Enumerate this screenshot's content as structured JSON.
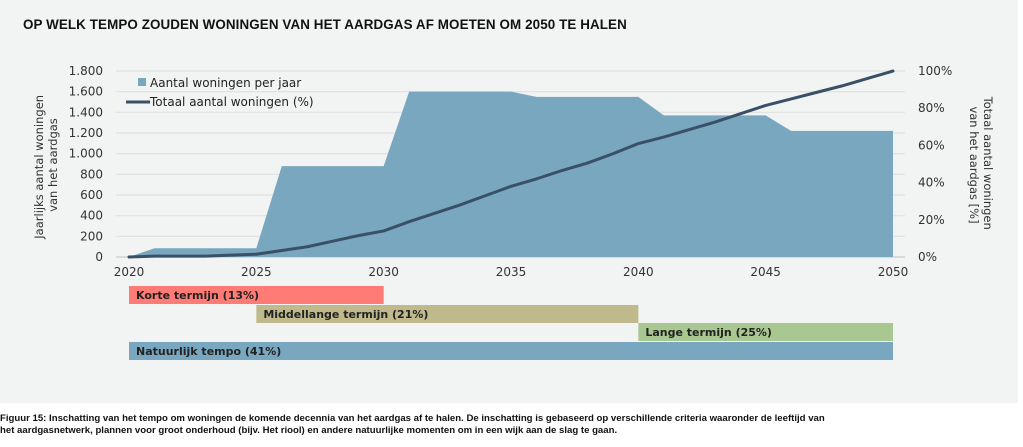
{
  "title": "OP WELK TEMPO ZOUDEN WONINGEN VAN HET AARDGAS AF MOETEN OM 2050 TE HALEN",
  "caption": {
    "line1": "Figuur 15: Inschatting van het tempo om woningen de komende decennia van het aardgas af te halen. De inschatting is gebaseerd op verschillende criteria waaronder de leeftijd van",
    "line2": "het aardgasnetwerk, plannen voor groot onderhoud (bijv. Het riool) en andere natuurlijke momenten om in een wijk aan de slag te gaan."
  },
  "chart_data": {
    "type": "area",
    "title": "OP WELK TEMPO ZOUDEN WONINGEN VAN HET AARDGAS AF MOETEN OM 2050 TE HALEN",
    "xlabel": "",
    "ylabel": "Jaarlijks aantal woningen van het aardgas",
    "ylabel_lines": [
      "Jaarlijks aantal woningen",
      "van het aardgas"
    ],
    "y2label": "Totaal aantal woningen van het aardgas [%]",
    "y2label_lines": [
      "Totaal aantal woningen",
      "van het aardgas [%]"
    ],
    "xlim": [
      2020,
      2050
    ],
    "ylim": [
      0,
      1800
    ],
    "y2lim": [
      0,
      100
    ],
    "grid": true,
    "legend_position": "top-left",
    "x_ticks": [
      2020,
      2025,
      2030,
      2035,
      2040,
      2045,
      2050
    ],
    "x_tick_labels": [
      "2020",
      "2025",
      "2030",
      "2035",
      "2040",
      "2045",
      "2050"
    ],
    "y_ticks": [
      0,
      200,
      400,
      600,
      800,
      1000,
      1200,
      1400,
      1600,
      1800
    ],
    "y_tick_labels": [
      "0",
      "200",
      "400",
      "600",
      "800",
      "1.000",
      "1.200",
      "1.400",
      "1.600",
      "1.800"
    ],
    "y2_ticks": [
      0,
      20,
      40,
      60,
      80,
      100
    ],
    "y2_tick_labels": [
      "0%",
      "20%",
      "40%",
      "60%",
      "80%",
      "100%"
    ],
    "x": [
      2020,
      2021,
      2022,
      2023,
      2024,
      2025,
      2026,
      2027,
      2028,
      2029,
      2030,
      2031,
      2032,
      2033,
      2034,
      2035,
      2036,
      2037,
      2038,
      2039,
      2040,
      2041,
      2042,
      2043,
      2044,
      2045,
      2046,
      2047,
      2048,
      2049,
      2050
    ],
    "series": [
      {
        "name": "Aantal woningen per jaar",
        "type": "area",
        "axis": "left",
        "color": "#79a7c0",
        "values": [
          0,
          85,
          85,
          85,
          85,
          85,
          880,
          880,
          880,
          880,
          880,
          1600,
          1600,
          1600,
          1600,
          1600,
          1550,
          1550,
          1550,
          1550,
          1550,
          1370,
          1370,
          1370,
          1370,
          1370,
          1220,
          1220,
          1220,
          1220,
          1220
        ]
      },
      {
        "name": "Totaal aantal woningen (%)",
        "type": "line",
        "axis": "right",
        "color": "#3a5067",
        "values": [
          0,
          0.5,
          0.5,
          0.5,
          1,
          1.5,
          3.5,
          5.5,
          8.5,
          11.5,
          14,
          19,
          23.5,
          28,
          33,
          38,
          42,
          46.5,
          50.5,
          55.5,
          61,
          64.5,
          68.5,
          72.5,
          77,
          81.5,
          85,
          88.5,
          92,
          96,
          100
        ]
      }
    ],
    "periods": [
      {
        "label": "Korte termijn (13%)",
        "start": 2020,
        "end": 2030,
        "color": "#ff7b76"
      },
      {
        "label": "Middellange termijn (21%)",
        "start": 2025,
        "end": 2040,
        "color": "#bfb98b"
      },
      {
        "label": "Lange termijn (25%)",
        "start": 2040,
        "end": 2050,
        "color": "#a8c791"
      },
      {
        "label": "Natuurlijk tempo (41%)",
        "start": 2020,
        "end": 2050,
        "color": "#79a7c0"
      }
    ]
  }
}
